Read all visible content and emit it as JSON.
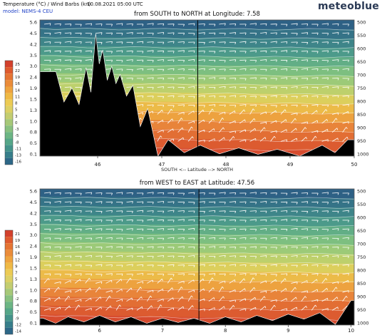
{
  "header": {
    "title": "Temperature (°C) / Wind Barbs (kn)",
    "datetime": "10.08.2021  05:00 UTC",
    "model": "model: NEMS-4 CEU",
    "brand": "meteoblue"
  },
  "chart_data": [
    {
      "type": "heatmap",
      "title": "from SOUTH to NORTH at Longitude:   7.58",
      "xlabel": "SOUTH <--   Latitude   --> NORTH",
      "x_ticks": [
        "46",
        "47",
        "48",
        "49",
        "50"
      ],
      "x_tick_values": [
        46,
        47,
        48,
        49,
        50
      ],
      "xlim": [
        45.1,
        50.0
      ],
      "marker_x": 47.56,
      "left_y_ticks": [
        "5.6",
        "4.5",
        "4.2",
        "3.5",
        "3.0",
        "2.4",
        "1.9",
        "1.5",
        "1.3",
        "1.0",
        "0.8",
        "0.5",
        "0.1"
      ],
      "right_y_ticks": [
        "500",
        "550",
        "600",
        "650",
        "700",
        "750",
        "800",
        "850",
        "900",
        "950",
        "1000"
      ],
      "legend_values": [
        "25",
        "22",
        "19",
        "16",
        "14",
        "11",
        "8",
        "5",
        "3",
        "0",
        "-3",
        "-5",
        "-8",
        "-11",
        "-13",
        "-16"
      ],
      "legend_colors": [
        "#d2402c",
        "#de5a2e",
        "#e57433",
        "#ea8c3a",
        "#eea33e",
        "#efb945",
        "#eccb54",
        "#dcd065",
        "#c3cd70",
        "#a6c878",
        "#88c07f",
        "#6cb584",
        "#55a688",
        "#44938a",
        "#377e8a",
        "#2d6787"
      ],
      "band_colors": [
        "#2e6185",
        "#357387",
        "#3e8589",
        "#4c9a8a",
        "#62ae86",
        "#7dbf80",
        "#9cca78",
        "#bdd06c",
        "#dccf5c",
        "#ecbb48",
        "#eda23f",
        "#e8843a",
        "#e26e34",
        "#dc5b30",
        "#d64b2e"
      ],
      "terrain_peaks": [
        {
          "lat": 45.35,
          "h": 0.62
        },
        {
          "lat": 45.6,
          "h": 0.5
        },
        {
          "lat": 45.82,
          "h": 0.65
        },
        {
          "lat": 45.97,
          "h": 0.9
        },
        {
          "lat": 46.08,
          "h": 0.78
        },
        {
          "lat": 46.22,
          "h": 0.66
        },
        {
          "lat": 46.35,
          "h": 0.6
        },
        {
          "lat": 46.55,
          "h": 0.52
        },
        {
          "lat": 46.78,
          "h": 0.35
        },
        {
          "lat": 47.1,
          "h": 0.12
        },
        {
          "lat": 47.6,
          "h": 0.08
        },
        {
          "lat": 48.2,
          "h": 0.06
        },
        {
          "lat": 48.8,
          "h": 0.05
        },
        {
          "lat": 49.5,
          "h": 0.08
        },
        {
          "lat": 49.9,
          "h": 0.12
        }
      ]
    },
    {
      "type": "heatmap",
      "title": "from WEST to EAST at Latitude:   47.56",
      "xlabel": "",
      "x_ticks": [
        "6",
        "7",
        "8",
        "9",
        "10"
      ],
      "x_tick_values": [
        6,
        7,
        8,
        9,
        10
      ],
      "xlim": [
        5.05,
        10.05
      ],
      "marker_x": 7.58,
      "left_y_ticks": [
        "5.6",
        "4.5",
        "4.2",
        "3.5",
        "3.0",
        "2.4",
        "1.9",
        "1.5",
        "1.3",
        "1.0",
        "0.8",
        "0.5",
        "0.1"
      ],
      "right_y_ticks": [
        "500",
        "550",
        "600",
        "650",
        "700",
        "750",
        "800",
        "850",
        "900",
        "950",
        "1000"
      ],
      "legend_values": [
        "21",
        "19",
        "16",
        "14",
        "12",
        "9",
        "7",
        "5",
        "2",
        "0",
        "-2",
        "-4",
        "-7",
        "-9",
        "-12",
        "-14"
      ],
      "legend_colors": [
        "#d2402c",
        "#de5a2e",
        "#e57433",
        "#ea8c3a",
        "#eea33e",
        "#efb945",
        "#eccb54",
        "#dcd065",
        "#c3cd70",
        "#a6c878",
        "#88c07f",
        "#6cb584",
        "#55a688",
        "#44938a",
        "#377e8a",
        "#2d6787"
      ],
      "band_colors": [
        "#2e6185",
        "#357387",
        "#3e8589",
        "#4c9a8a",
        "#62ae86",
        "#7dbf80",
        "#9cca78",
        "#bdd06c",
        "#dccf5c",
        "#ecbb48",
        "#eda23f",
        "#e8843a",
        "#e26e34",
        "#dc5b30",
        "#d64b2e"
      ],
      "terrain_peaks": [
        {
          "lon": 5.1,
          "h": 0.05
        },
        {
          "lon": 5.5,
          "h": 0.06
        },
        {
          "lon": 6.0,
          "h": 0.07
        },
        {
          "lon": 6.5,
          "h": 0.06
        },
        {
          "lon": 7.0,
          "h": 0.05
        },
        {
          "lon": 7.5,
          "h": 0.05
        },
        {
          "lon": 8.0,
          "h": 0.06
        },
        {
          "lon": 8.5,
          "h": 0.07
        },
        {
          "lon": 9.0,
          "h": 0.08
        },
        {
          "lon": 9.5,
          "h": 0.09
        },
        {
          "lon": 10.0,
          "h": 0.18
        }
      ]
    }
  ]
}
